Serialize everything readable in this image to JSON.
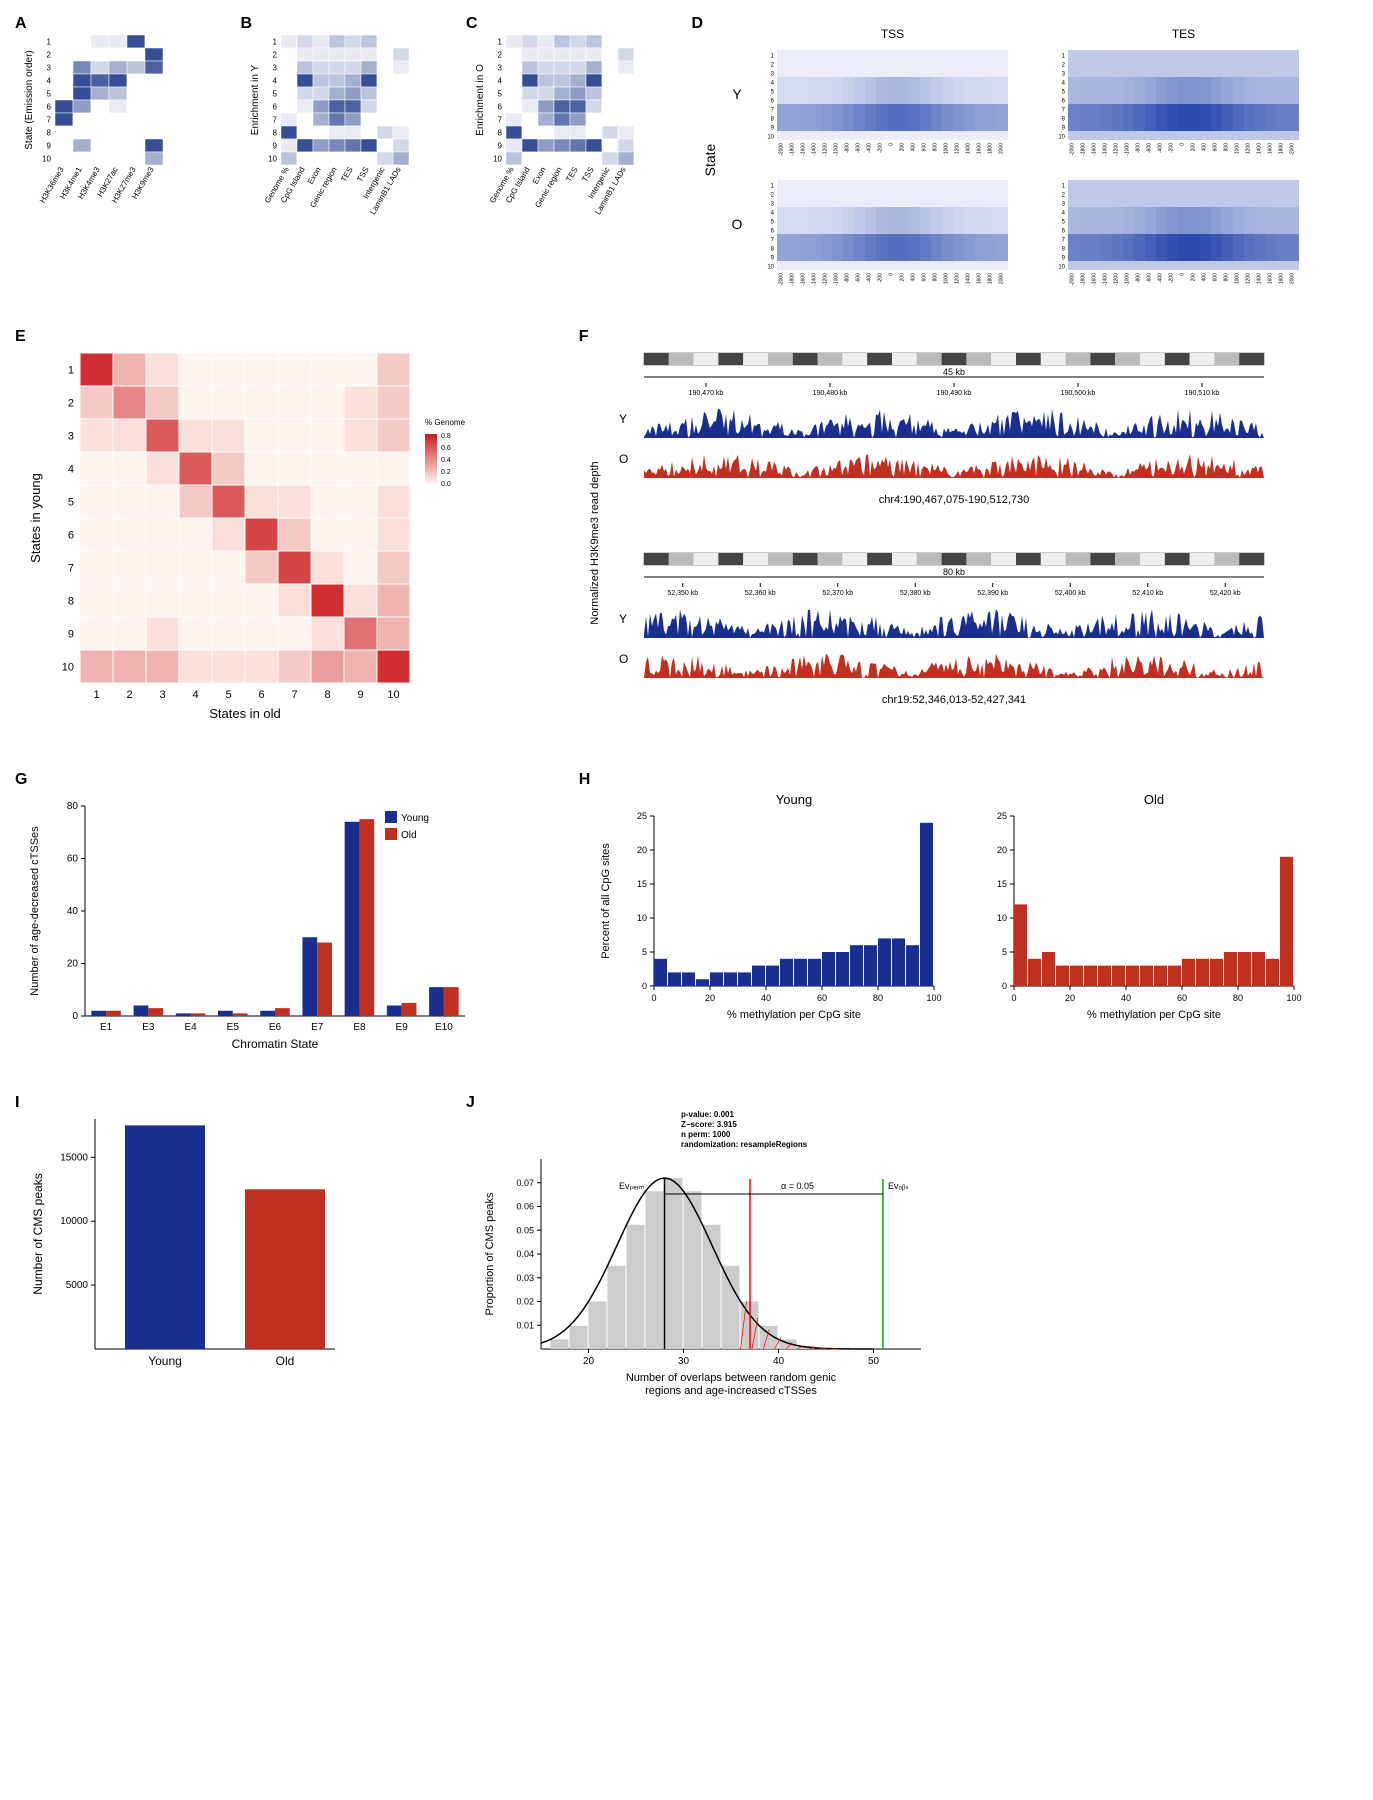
{
  "panels": {
    "A": {
      "label": "A",
      "ylabel": "State (Emission order)",
      "y_categories": [
        "1",
        "2",
        "3",
        "4",
        "5",
        "6",
        "7",
        "8",
        "9",
        "10"
      ],
      "x_categories": [
        "H3K36me3",
        "H3K4me1",
        "H3K4me3",
        "H3K27ac",
        "H3K27me3",
        "H3K9me3"
      ],
      "colorscale": {
        "low": "#ffffff",
        "high": "#1e3a8a"
      },
      "values": [
        [
          0.0,
          0.0,
          0.1,
          0.1,
          0.9,
          0.0
        ],
        [
          0.0,
          0.0,
          0.0,
          0.0,
          0.0,
          0.9
        ],
        [
          0.0,
          0.6,
          0.2,
          0.4,
          0.3,
          0.8
        ],
        [
          0.0,
          0.9,
          0.8,
          0.9,
          0.0,
          0.0
        ],
        [
          0.0,
          0.9,
          0.4,
          0.3,
          0.0,
          0.0
        ],
        [
          0.9,
          0.5,
          0.0,
          0.1,
          0.0,
          0.0
        ],
        [
          0.9,
          0.0,
          0.0,
          0.0,
          0.0,
          0.0
        ],
        [
          0.0,
          0.0,
          0.0,
          0.0,
          0.0,
          0.0
        ],
        [
          0.0,
          0.4,
          0.0,
          0.0,
          0.0,
          0.9
        ],
        [
          0.0,
          0.0,
          0.0,
          0.0,
          0.0,
          0.4
        ]
      ]
    },
    "B": {
      "label": "B",
      "ylabel": "Enrichment in Y",
      "y_categories": [
        "1",
        "2",
        "3",
        "4",
        "5",
        "6",
        "7",
        "8",
        "9",
        "10"
      ],
      "x_categories": [
        "Genome %",
        "CpG Island",
        "Exon",
        "Genic region",
        "TES",
        "TSS",
        "Intergenic",
        "LaminB1 LADs"
      ],
      "colorscale": {
        "low": "#ffffff",
        "high": "#1e3a8a"
      },
      "values": [
        [
          0.1,
          0.2,
          0.1,
          0.3,
          0.2,
          0.3,
          0.0,
          0.0
        ],
        [
          0.0,
          0.1,
          0.1,
          0.1,
          0.1,
          0.1,
          0.0,
          0.2
        ],
        [
          0.0,
          0.3,
          0.2,
          0.2,
          0.2,
          0.4,
          0.0,
          0.1
        ],
        [
          0.0,
          0.9,
          0.3,
          0.3,
          0.4,
          0.9,
          0.0,
          0.0
        ],
        [
          0.0,
          0.2,
          0.2,
          0.4,
          0.5,
          0.3,
          0.0,
          0.0
        ],
        [
          0.0,
          0.1,
          0.5,
          0.8,
          0.8,
          0.2,
          0.0,
          0.0
        ],
        [
          0.1,
          0.0,
          0.4,
          0.7,
          0.5,
          0.0,
          0.0,
          0.0
        ],
        [
          0.9,
          0.0,
          0.0,
          0.1,
          0.1,
          0.0,
          0.2,
          0.1
        ],
        [
          0.1,
          0.9,
          0.5,
          0.6,
          0.7,
          0.9,
          0.0,
          0.2
        ],
        [
          0.3,
          0.0,
          0.0,
          0.0,
          0.0,
          0.0,
          0.2,
          0.4
        ]
      ]
    },
    "C": {
      "label": "C",
      "ylabel": "Enrichment in O",
      "y_categories": [
        "1",
        "2",
        "3",
        "4",
        "5",
        "6",
        "7",
        "8",
        "9",
        "10"
      ],
      "x_categories": [
        "Genome %",
        "CpG Island",
        "Exon",
        "Genic region",
        "TES",
        "TSS",
        "Intergenic",
        "LaminB1 LADs"
      ],
      "colorscale": {
        "low": "#ffffff",
        "high": "#1e3a8a"
      },
      "values": [
        [
          0.1,
          0.2,
          0.1,
          0.3,
          0.2,
          0.3,
          0.0,
          0.0
        ],
        [
          0.0,
          0.1,
          0.1,
          0.1,
          0.1,
          0.1,
          0.0,
          0.2
        ],
        [
          0.0,
          0.3,
          0.2,
          0.2,
          0.2,
          0.4,
          0.0,
          0.1
        ],
        [
          0.0,
          0.9,
          0.3,
          0.3,
          0.4,
          0.9,
          0.0,
          0.0
        ],
        [
          0.0,
          0.2,
          0.2,
          0.4,
          0.5,
          0.3,
          0.0,
          0.0
        ],
        [
          0.0,
          0.1,
          0.5,
          0.8,
          0.8,
          0.2,
          0.0,
          0.0
        ],
        [
          0.1,
          0.0,
          0.4,
          0.7,
          0.5,
          0.0,
          0.0,
          0.0
        ],
        [
          0.9,
          0.0,
          0.0,
          0.1,
          0.1,
          0.0,
          0.2,
          0.1
        ],
        [
          0.1,
          0.9,
          0.5,
          0.6,
          0.7,
          0.9,
          0.0,
          0.2
        ],
        [
          0.3,
          0.0,
          0.0,
          0.0,
          0.0,
          0.0,
          0.2,
          0.4
        ]
      ]
    },
    "D": {
      "label": "D",
      "ylabel": "State",
      "col_titles": [
        "TSS",
        "TES"
      ],
      "row_labels": [
        "Y",
        "O"
      ],
      "y_categories": [
        "1",
        "2",
        "3",
        "4",
        "5",
        "6",
        "7",
        "8",
        "9",
        "10"
      ],
      "x_ticks_profile": [
        "-2000",
        "-1800",
        "-1600",
        "-1400",
        "-1200",
        "-1000",
        "-800",
        "-600",
        "-400",
        "-200",
        "0",
        "200",
        "400",
        "600",
        "800",
        "1000",
        "1200",
        "1400",
        "1600",
        "1800",
        "2000"
      ],
      "colorscale": {
        "low": "#ffffff",
        "high": "#2b4aaf"
      }
    },
    "E": {
      "label": "E",
      "xlabel": "States in old",
      "ylabel": "States in young",
      "categories": [
        "1",
        "2",
        "3",
        "4",
        "5",
        "6",
        "7",
        "8",
        "9",
        "10"
      ],
      "legend_title": "% Genome",
      "legend_ticks": [
        "0.0",
        "0.2",
        "0.4",
        "0.6",
        "0.8"
      ],
      "colorscale": {
        "low": "#fff5f0",
        "high": "#cb181d"
      },
      "values": [
        [
          0.9,
          0.3,
          0.1,
          0.0,
          0.0,
          0.0,
          0.0,
          0.0,
          0.0,
          0.2
        ],
        [
          0.2,
          0.5,
          0.2,
          0.0,
          0.0,
          0.0,
          0.0,
          0.0,
          0.1,
          0.2
        ],
        [
          0.1,
          0.1,
          0.7,
          0.1,
          0.1,
          0.0,
          0.0,
          0.0,
          0.1,
          0.2
        ],
        [
          0.0,
          0.0,
          0.1,
          0.7,
          0.2,
          0.0,
          0.0,
          0.0,
          0.0,
          0.0
        ],
        [
          0.0,
          0.0,
          0.0,
          0.2,
          0.7,
          0.1,
          0.1,
          0.0,
          0.0,
          0.1
        ],
        [
          0.0,
          0.0,
          0.0,
          0.0,
          0.1,
          0.8,
          0.2,
          0.0,
          0.0,
          0.1
        ],
        [
          0.0,
          0.0,
          0.0,
          0.0,
          0.0,
          0.2,
          0.8,
          0.1,
          0.0,
          0.2
        ],
        [
          0.0,
          0.0,
          0.0,
          0.0,
          0.0,
          0.0,
          0.1,
          0.9,
          0.1,
          0.3
        ],
        [
          0.0,
          0.0,
          0.1,
          0.0,
          0.0,
          0.0,
          0.0,
          0.1,
          0.6,
          0.3
        ],
        [
          0.3,
          0.3,
          0.3,
          0.1,
          0.1,
          0.1,
          0.2,
          0.4,
          0.3,
          0.9
        ]
      ]
    },
    "F": {
      "label": "F",
      "ylabel": "Normalized H3K9me3 read depth",
      "tracks": [
        {
          "region": "chr4:190,467,075-190,512,730",
          "span": "45 kb",
          "ruler_ticks": [
            "190,470 kb",
            "190,480 kb",
            "190,490 kb",
            "190,500 kb",
            "190,510 kb"
          ],
          "y_color": "#1a2e8f",
          "o_color": "#c03020",
          "y_scale": "28",
          "o_scale": "-3.24"
        },
        {
          "region": "chr19:52,346,013-52,427,341",
          "span": "80 kb",
          "ruler_ticks": [
            "52,350 kb",
            "52,360 kb",
            "52,370 kb",
            "52,380 kb",
            "52,390 kb",
            "52,400 kb",
            "52,410 kb",
            "52,420 kb"
          ],
          "y_color": "#1a2e8f",
          "o_color": "#c03020",
          "y_scale": "18.46",
          "o_scale": "-2.64"
        }
      ],
      "row_labels": [
        "Y",
        "O"
      ]
    },
    "G": {
      "label": "G",
      "xlabel": "Chromatin State",
      "ylabel": "Number of age-decreased cTSSes",
      "legend": [
        "Young",
        "Old"
      ],
      "legend_colors": [
        "#1a2e8f",
        "#c03020"
      ],
      "x_categories": [
        "E1",
        "E3",
        "E4",
        "E5",
        "E6",
        "E7",
        "E8",
        "E9",
        "E10"
      ],
      "young_values": [
        2,
        4,
        1,
        2,
        2,
        30,
        74,
        4,
        11
      ],
      "old_values": [
        2,
        3,
        1,
        1,
        3,
        28,
        75,
        5,
        11
      ],
      "ylim": [
        0,
        80
      ],
      "ytick_step": 20,
      "bar_colors": {
        "young": "#1a2e8f",
        "old": "#c03020"
      }
    },
    "H": {
      "label": "H",
      "subtitles": [
        "Young",
        "Old"
      ],
      "xlabel": "% methylation per CpG site",
      "ylabel": "Percent of all CpG sites",
      "xlim": [
        0,
        100
      ],
      "xtick_step": 20,
      "ylim": [
        0,
        25
      ],
      "ytick_step": 5,
      "young_color": "#1a2e8f",
      "old_color": "#c03020",
      "young_values": [
        4,
        2,
        2,
        1,
        2,
        2,
        2,
        3,
        3,
        4,
        4,
        4,
        5,
        5,
        6,
        6,
        7,
        7,
        6,
        24
      ],
      "old_values": [
        12,
        4,
        5,
        3,
        3,
        3,
        3,
        3,
        3,
        3,
        3,
        3,
        4,
        4,
        4,
        5,
        5,
        5,
        4,
        19
      ]
    },
    "I": {
      "label": "I",
      "ylabel": "Number of CMS peaks",
      "x_categories": [
        "Young",
        "Old"
      ],
      "values": [
        17500,
        12500
      ],
      "colors": [
        "#1a2e8f",
        "#c03020"
      ],
      "ylim": [
        0,
        18000
      ],
      "yticks": [
        5000,
        10000,
        15000
      ]
    },
    "J": {
      "label": "J",
      "ylabel": "Proportion of CMS peaks",
      "xlabel": "Number of overlaps between random genic\nregions and age-increased cTSSes",
      "stats": {
        "p_value": "0.001",
        "z_score": "3.915",
        "n_perm": "1000",
        "randomization": "resampleRegions"
      },
      "stats_labels": {
        "p_value": "p-value:",
        "z_score": "Z−score:",
        "n_perm": "n perm:",
        "randomization": "randomization:"
      },
      "annotations": {
        "ev_perm": "Evₚₑᵣₘ",
        "alpha": "α = 0.05",
        "ev_obs": "Evₒᵦₛ"
      },
      "xlim": [
        15,
        55
      ],
      "xticks": [
        20,
        30,
        40,
        50
      ],
      "ylim": [
        0,
        0.08
      ],
      "yticks": [
        0.01,
        0.02,
        0.03,
        0.04,
        0.05,
        0.06,
        0.07
      ],
      "hist_color": "#cccccc",
      "curve_color": "#000000",
      "alpha_line": "#ff0000",
      "obs_line": "#00aa00",
      "hatch_color": "#ff0000"
    }
  }
}
